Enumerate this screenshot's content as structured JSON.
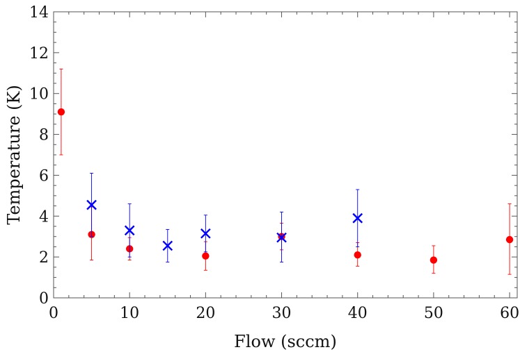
{
  "chart_data": {
    "type": "scatter",
    "title": "",
    "xlabel": "Flow (sccm)",
    "ylabel": "Temperature (K)",
    "xlim": [
      0,
      61
    ],
    "ylim": [
      0,
      14
    ],
    "x_ticks": [
      0,
      10,
      20,
      30,
      40,
      50,
      60
    ],
    "y_ticks": [
      0,
      2,
      4,
      6,
      8,
      10,
      12,
      14
    ],
    "x_tick_labels": [
      "0",
      "10",
      "20",
      "30",
      "40",
      "50",
      "60"
    ],
    "y_tick_labels": [
      "0",
      "2",
      "4",
      "6",
      "8",
      "10",
      "12",
      "14"
    ],
    "grid": false,
    "legend": "none",
    "series": [
      {
        "marker": "circle",
        "color": "#ff0000",
        "points": [
          {
            "x": 1,
            "y": 9.1,
            "lo": 7.0,
            "hi": 11.2
          },
          {
            "x": 5,
            "y": 3.1,
            "lo": 1.85,
            "hi": 4.45
          },
          {
            "x": 10,
            "y": 2.4,
            "lo": 1.85,
            "hi": 2.95
          },
          {
            "x": 20,
            "y": 2.05,
            "lo": 1.35,
            "hi": 2.75
          },
          {
            "x": 30,
            "y": 3.0,
            "lo": 2.35,
            "hi": 3.65
          },
          {
            "x": 40,
            "y": 2.1,
            "lo": 1.55,
            "hi": 2.7
          },
          {
            "x": 50,
            "y": 1.85,
            "lo": 1.2,
            "hi": 2.55
          },
          {
            "x": 60,
            "y": 2.85,
            "lo": 1.15,
            "hi": 4.6
          }
        ]
      },
      {
        "marker": "x",
        "color": "#0000ff",
        "points": [
          {
            "x": 5,
            "y": 4.55,
            "lo": 3.0,
            "hi": 6.1
          },
          {
            "x": 10,
            "y": 3.3,
            "lo": 2.0,
            "hi": 4.6
          },
          {
            "x": 15,
            "y": 2.55,
            "lo": 1.75,
            "hi": 3.35
          },
          {
            "x": 20,
            "y": 3.15,
            "lo": 2.25,
            "hi": 4.05
          },
          {
            "x": 30,
            "y": 2.95,
            "lo": 1.75,
            "hi": 4.2
          },
          {
            "x": 40,
            "y": 3.9,
            "lo": 2.5,
            "hi": 5.3
          }
        ]
      }
    ]
  }
}
